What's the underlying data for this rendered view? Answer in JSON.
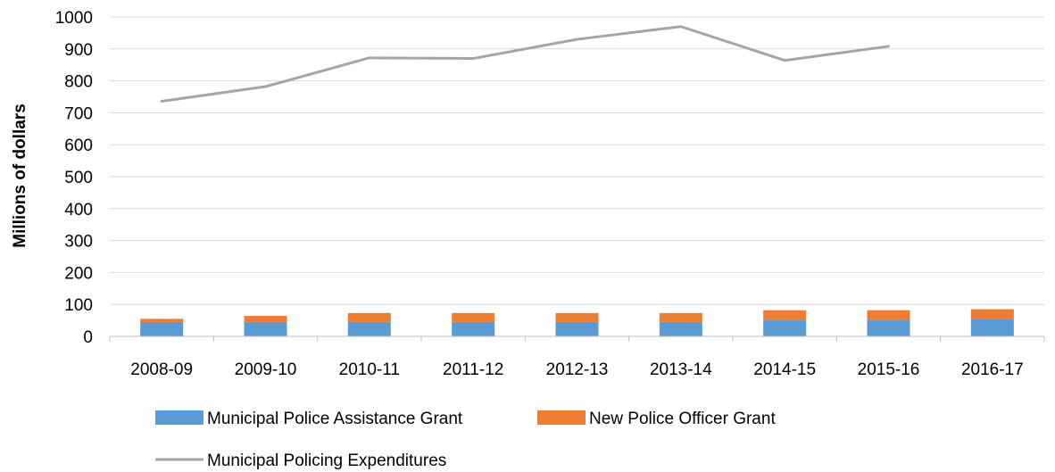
{
  "chart_data": {
    "type": "bar",
    "stacked": true,
    "categories": [
      "2008-09",
      "2009-10",
      "2010-11",
      "2011-12",
      "2012-13",
      "2013-14",
      "2014-15",
      "2015-16",
      "2016-17"
    ],
    "ylabel": "Millions of dollars",
    "xlabel": "",
    "ylim": [
      0,
      1000
    ],
    "yticks": [
      0,
      100,
      200,
      300,
      400,
      500,
      600,
      700,
      800,
      900,
      1000
    ],
    "grid": "horizontal",
    "legend_position": "bottom",
    "series": [
      {
        "name": "Municipal Police Assistance Grant",
        "kind": "bar",
        "color": "#5b9bd5",
        "values": [
          45,
          45,
          45,
          45,
          45,
          45,
          52,
          52,
          55
        ]
      },
      {
        "name": "New Police Officer Grant",
        "kind": "bar",
        "color": "#ed7d31",
        "values": [
          10,
          19,
          28,
          28,
          28,
          28,
          30,
          30,
          30
        ]
      },
      {
        "name": "Municipal Policing Expenditures",
        "kind": "line",
        "color": "#a5a5a5",
        "values": [
          736,
          782,
          872,
          870,
          930,
          970,
          864,
          908,
          null
        ]
      }
    ]
  }
}
